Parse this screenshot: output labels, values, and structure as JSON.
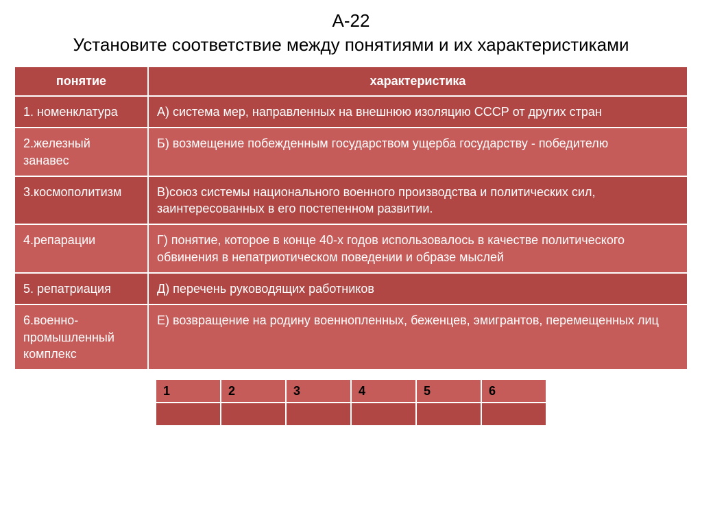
{
  "title": {
    "line1": "А-22",
    "line2": "Установите соответствие между понятиями и их характеристиками"
  },
  "headers": {
    "concept": "понятие",
    "characteristic": "характеристика"
  },
  "rows": [
    {
      "concept": "1. номенклатура",
      "characteristic": "А) система мер, направленных на  внешнюю изоляцию СССР от других  стран"
    },
    {
      "concept": "2.железный занавес",
      "characteristic": "Б) возмещение побежденным государством ущерба государству  - победителю"
    },
    {
      "concept": "3.космополитизм",
      "characteristic": "В)союз системы национального военного производства и политических сил, заинтересованных  в его постепенном развитии."
    },
    {
      "concept": "4.репарации",
      "characteristic": "Г) понятие, которое в конце 40-х годов использовалось в качестве политического обвинения в непатриотическом поведении и образе мыслей"
    },
    {
      "concept": "5. репатриация",
      "characteristic": "Д) перечень руководящих работников"
    },
    {
      "concept": "6.военно-промышленный комплекс",
      "characteristic": "Е) возвращение на родину военнопленных, беженцев, эмигрантов, перемещенных лиц"
    }
  ],
  "answer_headers": [
    "1",
    "2",
    "3",
    "4",
    "5",
    "6"
  ],
  "colors": {
    "dark": "#b04745",
    "light": "#c55c5a",
    "border": "#ffffff",
    "text_on_fill": "#ffffff",
    "title_text": "#000000"
  }
}
